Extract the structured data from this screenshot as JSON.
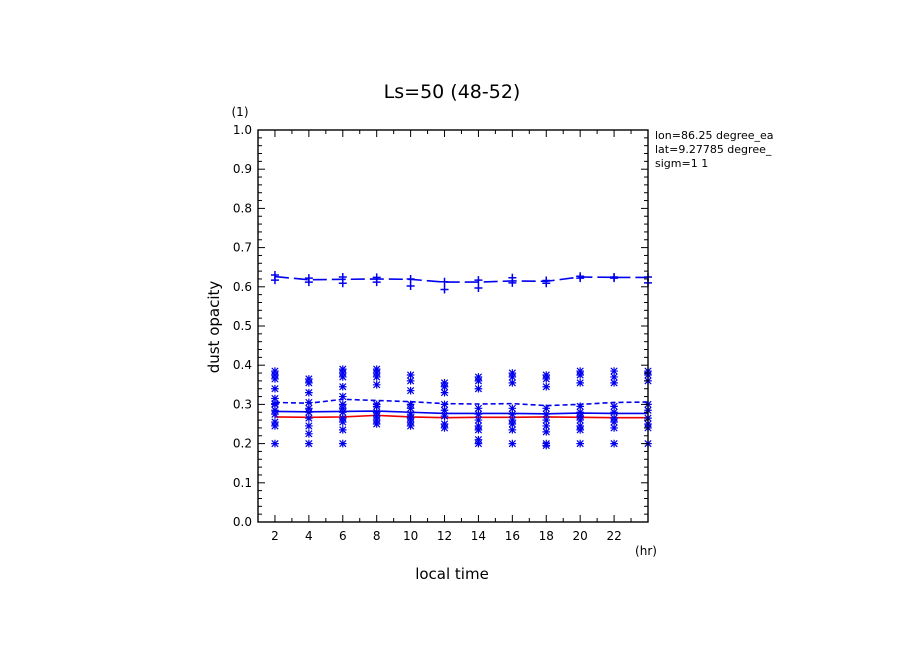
{
  "chart_data": {
    "type": "line",
    "title": "Ls=50 (48-52)",
    "xlabel": "local time",
    "xunit": "(hr)",
    "ylabel": "dust opacity",
    "yunit": "(1)",
    "xlim": [
      0.75,
      23.75
    ],
    "ylim": [
      0.0,
      1.0
    ],
    "xticks": [
      "2",
      "4",
      "6",
      "8",
      "10",
      "12",
      "14",
      "16",
      "18",
      "20",
      "22"
    ],
    "yticks": [
      "0.0",
      "0.1",
      "0.2",
      "0.3",
      "0.4",
      "0.5",
      "0.6",
      "0.7",
      "0.8",
      "0.9",
      "1.0"
    ],
    "info": [
      "lon=86.25 degree_ea",
      "lat=9.27785 degree_",
      "sigm=1 1"
    ],
    "colors": {
      "blue": "#0000ee",
      "red": "#ee0000",
      "axis": "#000000"
    },
    "x": [
      1.75,
      3.75,
      5.75,
      7.75,
      9.75,
      11.75,
      13.75,
      15.75,
      17.75,
      19.75,
      21.75,
      23.75
    ],
    "series": [
      {
        "style": "blue-longdash",
        "values": [
          0.626,
          0.618,
          0.619,
          0.62,
          0.619,
          0.612,
          0.612,
          0.615,
          0.614,
          0.625,
          0.624,
          0.624
        ]
      },
      {
        "style": "blue-dash",
        "values": [
          0.305,
          0.303,
          0.313,
          0.31,
          0.307,
          0.302,
          0.301,
          0.302,
          0.297,
          0.3,
          0.305,
          0.306
        ]
      },
      {
        "style": "blue-solid",
        "values": [
          0.282,
          0.281,
          0.282,
          0.283,
          0.28,
          0.277,
          0.277,
          0.277,
          0.276,
          0.278,
          0.277,
          0.277
        ]
      },
      {
        "style": "red-solid",
        "values": [
          0.268,
          0.267,
          0.268,
          0.272,
          0.268,
          0.266,
          0.267,
          0.267,
          0.268,
          0.267,
          0.266,
          0.266
        ]
      }
    ],
    "plus_markers": [
      [
        0.63,
        0.617
      ],
      [
        0.622,
        0.612
      ],
      [
        0.625,
        0.609
      ],
      [
        0.624,
        0.612
      ],
      [
        0.62,
        0.602
      ],
      [
        0.613,
        0.593
      ],
      [
        0.617,
        0.597
      ],
      [
        0.623,
        0.61
      ],
      [
        0.616,
        0.609
      ],
      [
        0.627,
        0.622
      ],
      [
        0.625,
        0.622
      ],
      [
        0.625,
        0.61
      ]
    ],
    "star_markers": [
      [
        0.385,
        0.375,
        0.365,
        0.34,
        0.315,
        0.302,
        0.3,
        0.285,
        0.275,
        0.255,
        0.245,
        0.2
      ],
      [
        0.365,
        0.355,
        0.33,
        0.305,
        0.29,
        0.28,
        0.265,
        0.245,
        0.225,
        0.2
      ],
      [
        0.39,
        0.38,
        0.37,
        0.345,
        0.32,
        0.3,
        0.29,
        0.28,
        0.265,
        0.255,
        0.235,
        0.2
      ],
      [
        0.39,
        0.38,
        0.37,
        0.35,
        0.3,
        0.295,
        0.28,
        0.27,
        0.26,
        0.25
      ],
      [
        0.375,
        0.36,
        0.335,
        0.3,
        0.29,
        0.275,
        0.265,
        0.255,
        0.245
      ],
      [
        0.355,
        0.345,
        0.33,
        0.3,
        0.285,
        0.27,
        0.25,
        0.24
      ],
      [
        0.37,
        0.36,
        0.34,
        0.29,
        0.275,
        0.26,
        0.245,
        0.235,
        0.21,
        0.2
      ],
      [
        0.38,
        0.37,
        0.355,
        0.29,
        0.275,
        0.26,
        0.25,
        0.235,
        0.2
      ],
      [
        0.375,
        0.365,
        0.345,
        0.29,
        0.275,
        0.26,
        0.245,
        0.23,
        0.2,
        0.195
      ],
      [
        0.385,
        0.375,
        0.355,
        0.295,
        0.28,
        0.27,
        0.26,
        0.245,
        0.235,
        0.2
      ],
      [
        0.385,
        0.37,
        0.355,
        0.295,
        0.28,
        0.265,
        0.255,
        0.24,
        0.2
      ],
      [
        0.385,
        0.375,
        0.36,
        0.3,
        0.285,
        0.265,
        0.25,
        0.24,
        0.2
      ]
    ]
  }
}
